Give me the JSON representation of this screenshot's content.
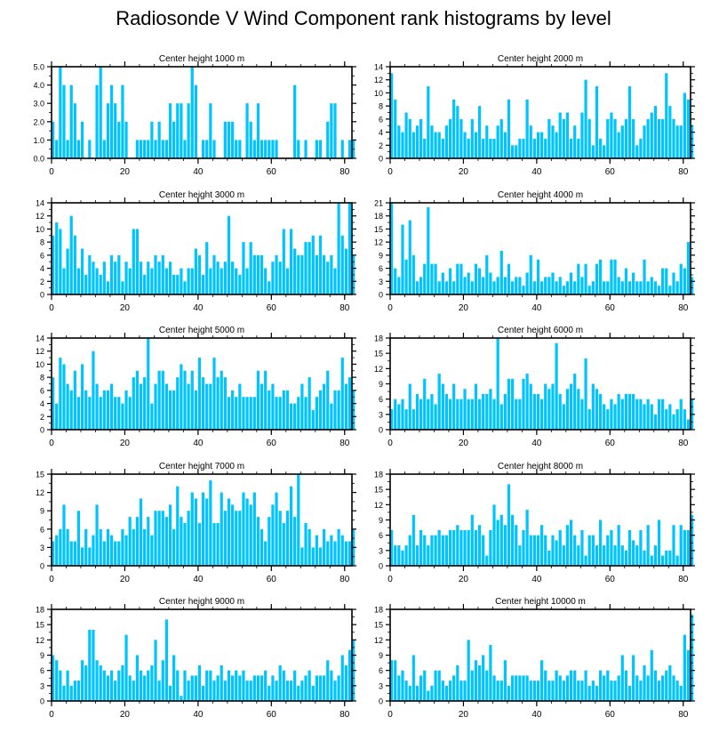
{
  "title": "Radiosonde V Wind Component rank histograms by level",
  "colors": {
    "bar": "#00c4ff",
    "axis": "#000000",
    "background": "#ffffff"
  },
  "chart_data": [
    {
      "type": "bar",
      "title": "Center height 1000 m",
      "xlim": [
        0,
        82
      ],
      "xticks": [
        0,
        20,
        40,
        60,
        80
      ],
      "ylim": [
        0,
        5
      ],
      "yticks": [
        "0.0",
        "1.0",
        "2.0",
        "3.0",
        "4.0",
        "5.0"
      ],
      "ytick_values": [
        0,
        1,
        2,
        3,
        4,
        5
      ],
      "values": [
        2,
        1,
        5,
        4,
        1,
        4,
        3,
        1,
        2,
        0,
        1,
        0,
        4,
        5,
        1,
        3,
        4,
        3,
        2,
        4,
        2,
        0,
        0,
        1,
        1,
        1,
        1,
        2,
        1,
        2,
        1,
        1,
        3,
        2,
        3,
        3,
        1,
        3,
        5,
        4,
        0,
        1,
        1,
        3,
        1,
        0,
        0,
        2,
        2,
        2,
        1,
        1,
        0,
        3,
        2,
        1,
        3,
        1,
        1,
        1,
        1,
        1,
        0,
        0,
        0,
        0,
        4,
        1,
        0,
        1,
        0,
        0,
        1,
        1,
        0,
        2,
        3,
        3,
        0,
        1,
        0,
        1,
        1
      ]
    },
    {
      "type": "bar",
      "title": "Center height 2000 m",
      "xlim": [
        0,
        82
      ],
      "xticks": [
        0,
        20,
        40,
        60,
        80
      ],
      "ylim": [
        0,
        14
      ],
      "yticks": [
        "0",
        "2",
        "4",
        "6",
        "8",
        "10",
        "12",
        "14"
      ],
      "ytick_values": [
        0,
        2,
        4,
        6,
        8,
        10,
        12,
        14
      ],
      "values": [
        13,
        9,
        5,
        4,
        7,
        6,
        4,
        5,
        6,
        3,
        11,
        5,
        4,
        4,
        3,
        5,
        6,
        9,
        8,
        6,
        4,
        3,
        6,
        4,
        8,
        3,
        5,
        3,
        3,
        5,
        6,
        4,
        9,
        2,
        2,
        3,
        3,
        9,
        5,
        3,
        4,
        4,
        3,
        6,
        5,
        4,
        7,
        6,
        7,
        3,
        5,
        3,
        7,
        12,
        6,
        2,
        11,
        3,
        2,
        6,
        7,
        6,
        4,
        5,
        6,
        11,
        6,
        2,
        3,
        5,
        6,
        7,
        8,
        6,
        6,
        13,
        8,
        6,
        5,
        5,
        10,
        9,
        5
      ]
    },
    {
      "type": "bar",
      "title": "Center height 3000 m",
      "xlim": [
        0,
        82
      ],
      "xticks": [
        0,
        20,
        40,
        60,
        80
      ],
      "ylim": [
        0,
        14
      ],
      "yticks": [
        "0",
        "2",
        "4",
        "6",
        "8",
        "10",
        "12",
        "14"
      ],
      "ytick_values": [
        0,
        2,
        4,
        6,
        8,
        10,
        12,
        14
      ],
      "values": [
        9,
        11,
        10,
        4,
        7,
        12,
        9,
        4,
        7,
        3,
        6,
        5,
        4,
        3,
        5,
        2,
        6,
        5,
        6,
        2,
        5,
        4,
        10,
        10,
        5,
        3,
        5,
        4,
        6,
        5,
        6,
        4,
        5,
        3,
        3,
        4,
        2,
        4,
        4,
        7,
        6,
        3,
        8,
        4,
        6,
        5,
        4,
        5,
        12,
        5,
        4,
        3,
        8,
        4,
        8,
        6,
        6,
        6,
        4,
        2,
        5,
        6,
        5,
        10,
        4,
        10,
        7,
        6,
        6,
        8,
        8,
        9,
        6,
        9,
        6,
        5,
        6,
        4,
        14,
        9,
        7,
        14,
        6
      ]
    },
    {
      "type": "bar",
      "title": "Center height 4000 m",
      "xlim": [
        0,
        82
      ],
      "xticks": [
        0,
        20,
        40,
        60,
        80
      ],
      "ylim": [
        0,
        21
      ],
      "yticks": [
        "0",
        "3",
        "6",
        "9",
        "12",
        "15",
        "18",
        "21"
      ],
      "ytick_values": [
        0,
        3,
        6,
        9,
        12,
        15,
        18,
        21
      ],
      "values": [
        21,
        6,
        4,
        16,
        8,
        17,
        9,
        3,
        4,
        7,
        20,
        7,
        7,
        3,
        5,
        3,
        6,
        3,
        7,
        7,
        4,
        5,
        3,
        7,
        6,
        4,
        9,
        5,
        3,
        4,
        10,
        4,
        7,
        3,
        4,
        4,
        2,
        5,
        9,
        3,
        8,
        3,
        4,
        4,
        5,
        3,
        4,
        2,
        3,
        5,
        3,
        7,
        4,
        7,
        2,
        3,
        7,
        8,
        3,
        3,
        8,
        8,
        4,
        3,
        6,
        3,
        5,
        3,
        3,
        8,
        3,
        4,
        3,
        2,
        6,
        6,
        2,
        5,
        3,
        7,
        6,
        12,
        4
      ]
    },
    {
      "type": "bar",
      "title": "Center height 5000 m",
      "xlim": [
        0,
        82
      ],
      "xticks": [
        0,
        20,
        40,
        60,
        80
      ],
      "ylim": [
        0,
        14
      ],
      "yticks": [
        "0",
        "2",
        "4",
        "6",
        "8",
        "10",
        "12",
        "14"
      ],
      "ytick_values": [
        0,
        2,
        4,
        6,
        8,
        10,
        12,
        14
      ],
      "values": [
        8,
        4,
        11,
        10,
        7,
        6,
        9,
        5,
        10,
        6,
        5,
        12,
        7,
        5,
        6,
        6,
        7,
        5,
        5,
        4,
        6,
        5,
        8,
        9,
        7,
        8,
        14,
        4,
        7,
        9,
        9,
        7,
        6,
        6,
        8,
        10,
        9,
        7,
        9,
        6,
        11,
        8,
        7,
        7,
        11,
        8,
        9,
        8,
        5,
        6,
        5,
        7,
        5,
        5,
        5,
        5,
        9,
        7,
        9,
        6,
        7,
        5,
        5,
        6,
        6,
        4,
        4,
        5,
        7,
        5,
        8,
        3,
        5,
        6,
        7,
        9,
        4,
        6,
        6,
        11,
        7,
        8,
        6
      ]
    },
    {
      "type": "bar",
      "title": "Center height 6000 m",
      "xlim": [
        0,
        82
      ],
      "xticks": [
        0,
        20,
        40,
        60,
        80
      ],
      "ylim": [
        0,
        18
      ],
      "yticks": [
        "0",
        "3",
        "6",
        "9",
        "12",
        "15",
        "18"
      ],
      "ytick_values": [
        0,
        3,
        6,
        9,
        12,
        15,
        18
      ],
      "values": [
        4,
        6,
        5,
        6,
        4,
        9,
        4,
        7,
        6,
        10,
        6,
        7,
        5,
        11,
        9,
        7,
        6,
        9,
        6,
        6,
        8,
        6,
        6,
        9,
        6,
        7,
        7,
        8,
        6,
        18,
        5,
        7,
        10,
        10,
        6,
        6,
        10,
        11,
        9,
        7,
        7,
        6,
        9,
        8,
        9,
        17,
        7,
        5,
        8,
        9,
        11,
        8,
        6,
        14,
        4,
        9,
        8,
        7,
        5,
        4,
        6,
        5,
        7,
        6,
        7,
        7,
        7,
        6,
        6,
        5,
        6,
        5,
        3,
        6,
        6,
        4,
        5,
        3,
        4,
        6,
        4,
        2,
        6
      ]
    },
    {
      "type": "bar",
      "title": "Center height 7000 m",
      "xlim": [
        0,
        82
      ],
      "xticks": [
        0,
        20,
        40,
        60,
        80
      ],
      "ylim": [
        0,
        15
      ],
      "yticks": [
        "0",
        "3",
        "6",
        "9",
        "12",
        "15"
      ],
      "ytick_values": [
        0,
        3,
        6,
        9,
        12,
        15
      ],
      "values": [
        4,
        5,
        6,
        10,
        6,
        4,
        4,
        9,
        3,
        6,
        3,
        5,
        10,
        6,
        4,
        6,
        5,
        4,
        4,
        6,
        5,
        8,
        6,
        8,
        11,
        6,
        8,
        5,
        9,
        9,
        9,
        8,
        10,
        6,
        13,
        8,
        7,
        9,
        12,
        11,
        7,
        12,
        11,
        14,
        7,
        7,
        12,
        9,
        11,
        10,
        9,
        9,
        12,
        11,
        10,
        12,
        8,
        6,
        4,
        8,
        10,
        12,
        9,
        7,
        9,
        13,
        8,
        15,
        3,
        7,
        6,
        3,
        5,
        3,
        6,
        4,
        5,
        4,
        6,
        5,
        4,
        4,
        6
      ]
    },
    {
      "type": "bar",
      "title": "Center height 8000 m",
      "xlim": [
        0,
        82
      ],
      "xticks": [
        0,
        20,
        40,
        60,
        80
      ],
      "ylim": [
        0,
        18
      ],
      "yticks": [
        "0",
        "3",
        "6",
        "9",
        "12",
        "15",
        "18"
      ],
      "ytick_values": [
        0,
        3,
        6,
        9,
        12,
        15,
        18
      ],
      "values": [
        7,
        4,
        4,
        3,
        4,
        6,
        10,
        4,
        7,
        6,
        4,
        6,
        6,
        7,
        6,
        6,
        7,
        7,
        8,
        7,
        7,
        7,
        10,
        7,
        8,
        6,
        2,
        7,
        12,
        9,
        10,
        8,
        16,
        10,
        8,
        4,
        7,
        11,
        6,
        6,
        6,
        8,
        6,
        3,
        6,
        5,
        7,
        4,
        8,
        9,
        6,
        4,
        7,
        2,
        6,
        6,
        4,
        9,
        4,
        6,
        7,
        4,
        8,
        4,
        3,
        7,
        5,
        4,
        7,
        3,
        8,
        2,
        4,
        9,
        2,
        3,
        3,
        8,
        2,
        8,
        7,
        7,
        10
      ]
    },
    {
      "type": "bar",
      "title": "Center height 9000 m",
      "xlim": [
        0,
        82
      ],
      "xticks": [
        0,
        20,
        40,
        60,
        80
      ],
      "ylim": [
        0,
        18
      ],
      "yticks": [
        "0",
        "3",
        "6",
        "9",
        "12",
        "15",
        "18"
      ],
      "ytick_values": [
        0,
        3,
        6,
        9,
        12,
        15,
        18
      ],
      "values": [
        9,
        8,
        6,
        3,
        6,
        3,
        4,
        4,
        8,
        7,
        14,
        14,
        8,
        7,
        6,
        5,
        6,
        4,
        6,
        7,
        13,
        5,
        4,
        9,
        6,
        5,
        6,
        7,
        12,
        4,
        8,
        16,
        3,
        9,
        6,
        1,
        6,
        4,
        5,
        5,
        7,
        3,
        6,
        6,
        4,
        5,
        7,
        4,
        6,
        5,
        6,
        5,
        6,
        4,
        4,
        5,
        5,
        5,
        6,
        3,
        5,
        4,
        7,
        6,
        4,
        4,
        6,
        3,
        4,
        5,
        6,
        3,
        5,
        5,
        5,
        8,
        6,
        4,
        5,
        9,
        7,
        10,
        12
      ]
    },
    {
      "type": "bar",
      "title": "Center height 10000 m",
      "xlim": [
        0,
        82
      ],
      "xticks": [
        0,
        20,
        40,
        60,
        80
      ],
      "ylim": [
        0,
        18
      ],
      "yticks": [
        "0",
        "3",
        "6",
        "9",
        "12",
        "15",
        "18"
      ],
      "ytick_values": [
        0,
        3,
        6,
        9,
        12,
        15,
        18
      ],
      "values": [
        8,
        8,
        5,
        6,
        4,
        3,
        9,
        3,
        5,
        6,
        2,
        3,
        6,
        6,
        4,
        3,
        4,
        5,
        7,
        4,
        4,
        12,
        6,
        8,
        7,
        9,
        6,
        11,
        5,
        4,
        4,
        8,
        3,
        5,
        5,
        5,
        5,
        5,
        4,
        4,
        4,
        8,
        6,
        4,
        4,
        6,
        5,
        4,
        5,
        6,
        6,
        4,
        4,
        6,
        3,
        4,
        3,
        6,
        5,
        6,
        4,
        4,
        5,
        9,
        6,
        3,
        9,
        5,
        4,
        7,
        5,
        10,
        6,
        4,
        5,
        6,
        7,
        5,
        4,
        3,
        13,
        10,
        17
      ]
    }
  ]
}
